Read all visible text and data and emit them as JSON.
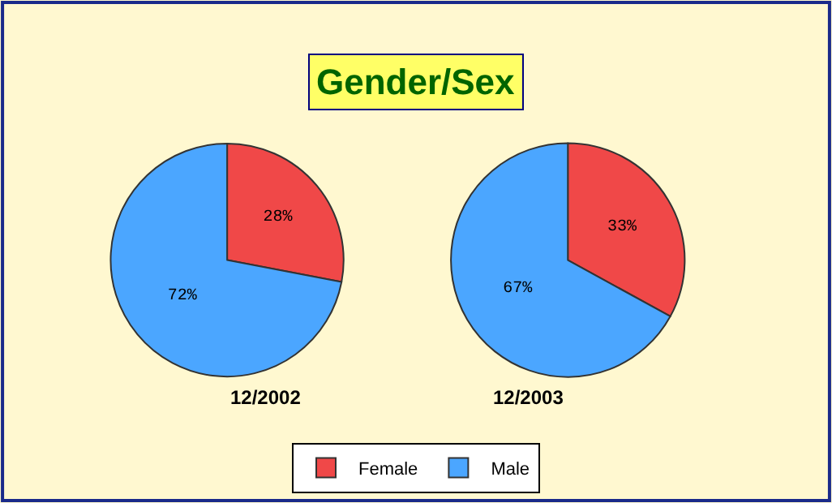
{
  "chart_data": [
    {
      "type": "other",
      "title": "Gender/Sex"
    },
    {
      "type": "pie",
      "xlabel": "12/2002",
      "categories": [
        "Female",
        "Male"
      ],
      "values": [
        28,
        72
      ],
      "value_labels": [
        "28%",
        "72%"
      ],
      "colors": [
        "#f04848",
        "#4ba6ff"
      ],
      "legend": "bottom"
    },
    {
      "type": "pie",
      "xlabel": "12/2003",
      "categories": [
        null,
        null
      ],
      "values": [
        33,
        67
      ],
      "value_labels": [
        "33%",
        "67%"
      ],
      "colors": [
        "#f04848",
        "#4ba6ff"
      ]
    }
  ]
}
